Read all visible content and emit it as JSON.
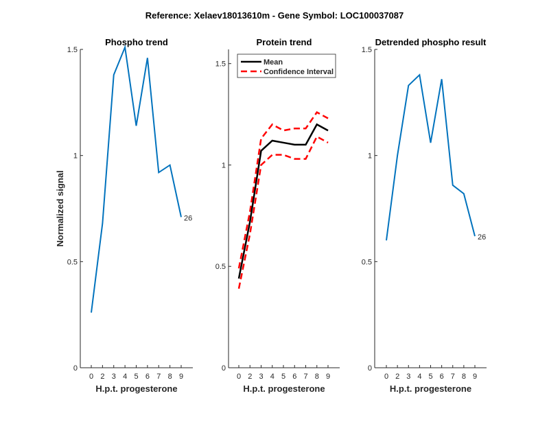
{
  "figure_title": "Reference:  Xelaev18013610m - Gene Symbol:  LOC100037087",
  "chart_data": [
    {
      "type": "line",
      "title": "Phospho trend",
      "xlabel": "H.p.t. progesterone",
      "ylabel": "Normalized signal",
      "categories": [
        "0",
        "2",
        "3",
        "4",
        "5",
        "6",
        "7",
        "8",
        "9"
      ],
      "ylim": [
        0,
        1.5
      ],
      "yticks": [
        0,
        0.5,
        1,
        1.5
      ],
      "ytick_labels": [
        "0",
        "0.5",
        "1",
        "1.5"
      ],
      "series": [
        {
          "name": "Phospho",
          "color": "#0072BD",
          "values": [
            0.26,
            0.68,
            1.38,
            1.51,
            1.14,
            1.46,
            0.92,
            0.955,
            0.71
          ]
        }
      ],
      "annotation": "26"
    },
    {
      "type": "line",
      "title": "Protein trend",
      "xlabel": "H.p.t. progesterone",
      "ylabel": "",
      "categories": [
        "0",
        "2",
        "3",
        "4",
        "5",
        "6",
        "7",
        "8",
        "9"
      ],
      "ylim": [
        0,
        1.57
      ],
      "yticks": [
        0,
        0.5,
        1,
        1.5
      ],
      "ytick_labels": [
        "0",
        "0.5",
        "1",
        "1.5"
      ],
      "legend": {
        "placement": "top-left",
        "entries": [
          "Mean",
          "Confidence Interval"
        ]
      },
      "series": [
        {
          "name": "Mean",
          "color": "#000000",
          "style": "solid",
          "values": [
            0.44,
            0.72,
            1.07,
            1.12,
            1.11,
            1.1,
            1.1,
            1.2,
            1.17
          ]
        },
        {
          "name": "Confidence Interval",
          "color": "#FF0000",
          "style": "dashed",
          "values": [
            0.49,
            0.77,
            1.13,
            1.2,
            1.17,
            1.18,
            1.18,
            1.26,
            1.23
          ]
        },
        {
          "name": "Confidence Interval lower",
          "color": "#FF0000",
          "style": "dashed",
          "values": [
            0.39,
            0.66,
            1.0,
            1.05,
            1.05,
            1.03,
            1.03,
            1.14,
            1.11
          ]
        }
      ]
    },
    {
      "type": "line",
      "title": "Detrended phospho result",
      "xlabel": "H.p.t. progesterone",
      "ylabel": "",
      "categories": [
        "0",
        "2",
        "3",
        "4",
        "5",
        "6",
        "7",
        "8",
        "9"
      ],
      "ylim": [
        0,
        1.5
      ],
      "yticks": [
        0,
        0.5,
        1,
        1.5
      ],
      "ytick_labels": [
        "0",
        "0.5",
        "1",
        "1.5"
      ],
      "series": [
        {
          "name": "Detrended",
          "color": "#0072BD",
          "values": [
            0.6,
            1.0,
            1.33,
            1.38,
            1.06,
            1.36,
            0.86,
            0.82,
            0.62
          ]
        }
      ],
      "annotation": "26"
    }
  ]
}
